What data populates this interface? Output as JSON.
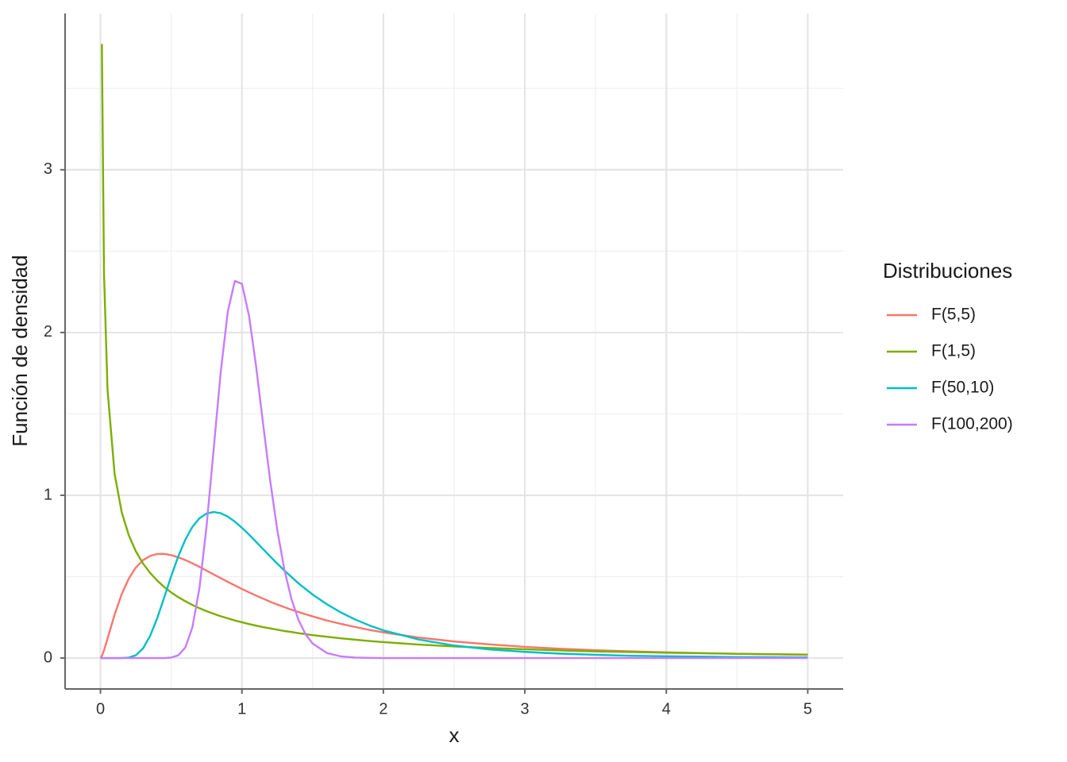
{
  "chart_data": {
    "type": "line",
    "x_label": "x",
    "y_label": "Función de densidad",
    "legend_title": "Distribuciones",
    "legend": "right",
    "x": [
      0,
      0.01,
      0.025,
      0.05,
      0.1,
      0.15,
      0.2,
      0.25,
      0.3,
      0.35,
      0.4,
      0.45,
      0.5,
      0.55,
      0.6,
      0.65,
      0.7,
      0.75,
      0.8,
      0.85,
      0.9,
      0.95,
      1,
      1.05,
      1.1,
      1.15,
      1.2,
      1.25,
      1.3,
      1.35,
      1.4,
      1.45,
      1.5,
      1.6,
      1.7,
      1.8,
      1.9,
      2,
      2.25,
      2.5,
      2.75,
      3,
      3.25,
      3.5,
      3.75,
      4,
      4.5,
      5
    ],
    "series": [
      {
        "name": "F(5,5)",
        "color": "#F8766D",
        "values": [
          0,
          0.013,
          0.047,
          0.119,
          0.267,
          0.392,
          0.488,
          0.556,
          0.601,
          0.627,
          0.639,
          0.64,
          0.632,
          0.619,
          0.602,
          0.582,
          0.56,
          0.537,
          0.514,
          0.491,
          0.468,
          0.446,
          0.424,
          0.404,
          0.384,
          0.365,
          0.346,
          0.329,
          0.313,
          0.297,
          0.283,
          0.269,
          0.256,
          0.231,
          0.21,
          0.191,
          0.173,
          0.158,
          0.126,
          0.102,
          0.084,
          0.069,
          0.057,
          0.048,
          0.041,
          0.035,
          0.026,
          0.02
        ]
      },
      {
        "name": "F(1,5)",
        "color": "#7CAE00",
        "values": [
          null,
          3.773,
          2.365,
          1.648,
          1.131,
          0.897,
          0.755,
          0.656,
          0.582,
          0.524,
          0.477,
          0.437,
          0.403,
          0.374,
          0.349,
          0.326,
          0.306,
          0.288,
          0.272,
          0.257,
          0.244,
          0.231,
          0.22,
          0.209,
          0.199,
          0.19,
          0.182,
          0.174,
          0.166,
          0.16,
          0.153,
          0.147,
          0.141,
          0.131,
          0.121,
          0.113,
          0.105,
          0.098,
          0.083,
          0.071,
          0.062,
          0.054,
          0.047,
          0.041,
          0.037,
          0.033,
          0.026,
          0.021
        ]
      },
      {
        "name": "F(50,10)",
        "color": "#00BFC4",
        "values": [
          0,
          0,
          0,
          0,
          0,
          0,
          0.003,
          0.017,
          0.058,
          0.134,
          0.242,
          0.37,
          0.503,
          0.625,
          0.727,
          0.806,
          0.859,
          0.888,
          0.897,
          0.89,
          0.869,
          0.838,
          0.8,
          0.759,
          0.714,
          0.669,
          0.624,
          0.58,
          0.538,
          0.498,
          0.459,
          0.424,
          0.39,
          0.331,
          0.28,
          0.237,
          0.201,
          0.17,
          0.114,
          0.077,
          0.053,
          0.038,
          0.027,
          0.02,
          0.014,
          0.011,
          0.006,
          0.004
        ]
      },
      {
        "name": "F(100,200)",
        "color": "#C77CFF",
        "values": [
          0,
          0,
          0,
          0,
          0,
          0,
          0,
          0,
          0,
          0,
          0,
          0,
          0.003,
          0.017,
          0.065,
          0.189,
          0.432,
          0.809,
          1.281,
          1.756,
          2.128,
          2.317,
          2.299,
          2.104,
          1.794,
          1.437,
          1.089,
          0.787,
          0.544,
          0.363,
          0.234,
          0.146,
          0.089,
          0.031,
          0.01,
          0.003,
          0.001,
          0,
          0,
          0,
          0,
          0,
          0,
          0,
          0,
          0,
          0,
          0
        ]
      }
    ],
    "xlim": [
      -0.25,
      5.25
    ],
    "ylim": [
      -0.19,
      3.96
    ],
    "xticks": [
      0,
      1,
      2,
      3,
      4,
      5
    ],
    "yticks": [
      0,
      1,
      2,
      3
    ],
    "xminor": [
      0.5,
      1.5,
      2.5,
      3.5,
      4.5
    ],
    "yminor": [
      0.5,
      1.5,
      2.5,
      3.5
    ],
    "grid": true
  }
}
